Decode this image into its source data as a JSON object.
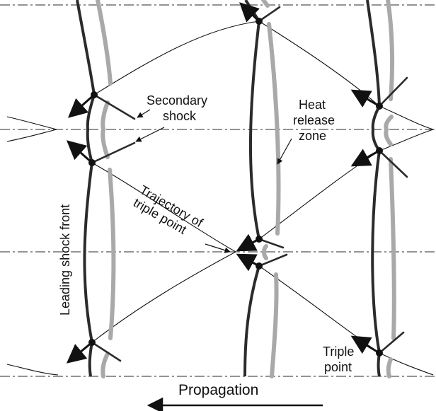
{
  "labels": {
    "secondary_shock_1": "Secondary",
    "secondary_shock_2": "shock",
    "heat_release_1": "Heat",
    "heat_release_2": "release",
    "heat_release_3": "zone",
    "trajectory_1": "Trajectory of",
    "trajectory_2": "triple point",
    "leading_shock_front": "Leading shock front",
    "triple_point_1": "Triple",
    "triple_point_2": "point",
    "propagation": "Propagation"
  },
  "colors": {
    "shock": "#2b2b2b",
    "heat_release": "#a9a9a9",
    "centerline": "#555555",
    "text": "#111111"
  }
}
